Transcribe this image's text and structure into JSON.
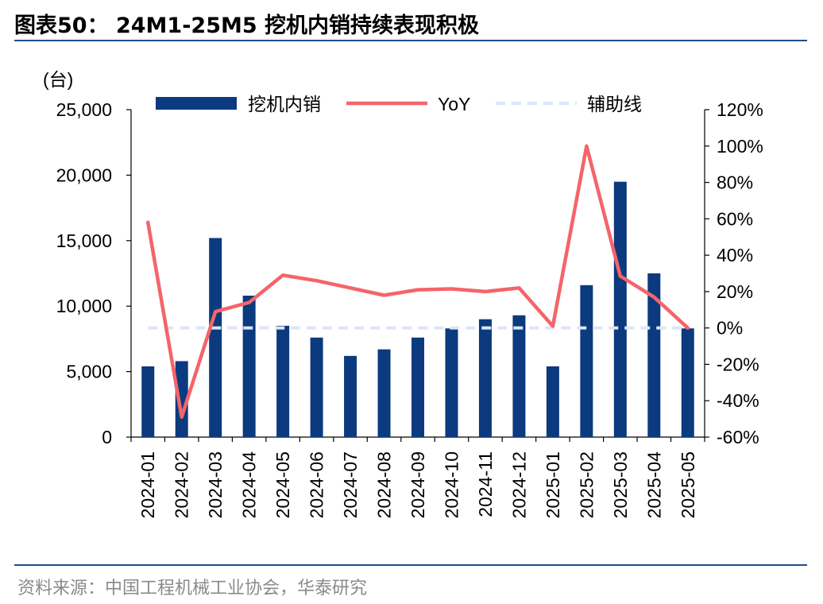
{
  "title": "图表50：  24M1-25M5 挖机内销持续表现积极",
  "source": "资料来源：中国工程机械工业协会，华泰研究",
  "colors": {
    "bar": "#0b3a7e",
    "line": "#f4646a",
    "ref": "#dce6f5",
    "rule": "#1f4e8c"
  },
  "chart_data": {
    "type": "bar",
    "categories": [
      "2024-01",
      "2024-02",
      "2024-03",
      "2024-04",
      "2024-05",
      "2024-06",
      "2024-07",
      "2024-08",
      "2024-09",
      "2024-10",
      "2024-11",
      "2024-12",
      "2025-01",
      "2025-02",
      "2025-03",
      "2025-04",
      "2025-05"
    ],
    "left_axis_unit": "(台)",
    "left_ylim": [
      0,
      25000
    ],
    "left_ticks": [
      "0",
      "5,000",
      "10,000",
      "15,000",
      "20,000",
      "25,000"
    ],
    "right_ylim": [
      -60,
      120
    ],
    "right_ticks": [
      "-60%",
      "-40%",
      "-20%",
      "0%",
      "20%",
      "40%",
      "60%",
      "80%",
      "100%",
      "120%"
    ],
    "series": [
      {
        "name": "挖机内销",
        "type": "bar",
        "values": [
          5400,
          5800,
          15200,
          10800,
          8500,
          7600,
          6200,
          6700,
          7600,
          8300,
          9000,
          9300,
          5400,
          11600,
          19500,
          12500,
          8300
        ]
      },
      {
        "name": "YoY",
        "type": "line",
        "axis": "right",
        "values": [
          58,
          -49,
          9,
          14,
          29,
          26,
          22,
          18,
          21,
          21.5,
          20,
          22,
          1,
          100,
          28.5,
          17,
          0
        ]
      },
      {
        "name": "辅助线",
        "type": "reference",
        "axis": "right",
        "values": [
          0,
          0,
          0,
          0,
          0,
          0,
          0,
          0,
          0,
          0,
          0,
          0,
          0,
          0,
          0,
          0,
          0
        ]
      }
    ],
    "legend": {
      "placement": "top",
      "entries": [
        "挖机内销",
        "YoY",
        "辅助线"
      ]
    },
    "grid": false
  }
}
